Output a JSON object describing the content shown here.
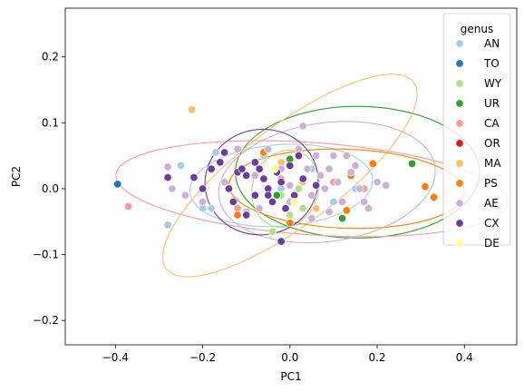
{
  "chart_data": {
    "type": "scatter",
    "xlabel": "PC1",
    "ylabel": "PC2",
    "xlim": [
      -0.515,
      0.52
    ],
    "ylim": [
      -0.237,
      0.274
    ],
    "xticks": [
      -0.4,
      -0.2,
      0.0,
      0.2,
      0.4
    ],
    "yticks": [
      -0.2,
      -0.1,
      0.0,
      0.1,
      0.2
    ],
    "xtick_labels": [
      "−0.4",
      "−0.2",
      "0.0",
      "0.2",
      "0.4"
    ],
    "ytick_labels": [
      "−0.2",
      "−0.1",
      "0.0",
      "0.1",
      "0.2"
    ],
    "grid": false,
    "legend": {
      "title": "genus",
      "placement": "top-right",
      "entries": [
        "AN",
        "TO",
        "WY",
        "UR",
        "CA",
        "OR",
        "MA",
        "PS",
        "AE",
        "CX",
        "DE"
      ]
    },
    "series": [
      {
        "name": "AN",
        "color": "#a6cee3",
        "points": [
          [
            -0.28,
            -0.055
          ],
          [
            -0.25,
            0.035
          ],
          [
            -0.2,
            -0.03
          ],
          [
            -0.18,
            -0.03
          ],
          [
            -0.17,
            0.055
          ],
          [
            -0.1,
            -0.035
          ],
          [
            -0.06,
            0.05
          ],
          [
            -0.02,
            0.0
          ],
          [
            0.05,
            0.03
          ],
          [
            0.1,
            -0.02
          ],
          [
            0.15,
            0.0
          ],
          [
            0.18,
            -0.03
          ]
        ],
        "ellipse": {
          "cx": -0.02,
          "cy": 0.005,
          "rx": 0.21,
          "ry": 0.062,
          "angle": -4
        }
      },
      {
        "name": "TO",
        "color": "#1f78b4",
        "points": [
          [
            -0.395,
            0.007
          ]
        ],
        "ellipse": null
      },
      {
        "name": "WY",
        "color": "#b2df8a",
        "points": [
          [
            -0.04,
            -0.065
          ],
          [
            -0.02,
            -0.01
          ],
          [
            0.0,
            -0.04
          ],
          [
            0.02,
            0.0
          ],
          [
            0.03,
            -0.03
          ]
        ],
        "ellipse": {
          "cx": -0.01,
          "cy": 0.0,
          "rx": 0.09,
          "ry": 0.05,
          "angle": -70
        }
      },
      {
        "name": "UR",
        "color": "#33a02c",
        "points": [
          [
            0.28,
            0.038
          ],
          [
            0.12,
            -0.045
          ],
          [
            0.0,
            0.045
          ],
          [
            -0.03,
            -0.01
          ]
        ],
        "ellipse": {
          "cx": 0.155,
          "cy": 0.025,
          "rx": 0.28,
          "ry": 0.1,
          "angle": 0
        }
      },
      {
        "name": "CA",
        "color": "#fb9a99",
        "points": [
          [
            -0.37,
            -0.027
          ],
          [
            0.17,
            0.0
          ],
          [
            -0.12,
            -0.03
          ],
          [
            -0.02,
            0.015
          ],
          [
            0.1,
            0.01
          ]
        ],
        "ellipse": {
          "cx": 0.05,
          "cy": 0.0,
          "rx": 0.45,
          "ry": 0.07,
          "angle": 4
        }
      },
      {
        "name": "OR",
        "color": "#e31a1c",
        "points": [],
        "ellipse": null
      },
      {
        "name": "MA",
        "color": "#fdbf6f",
        "points": [
          [
            -0.225,
            0.12
          ],
          [
            0.03,
            0.01
          ],
          [
            -0.02,
            0.04
          ],
          [
            0.06,
            -0.03
          ]
        ],
        "ellipse": {
          "cx": 0.0,
          "cy": 0.02,
          "rx": 0.355,
          "ry": 0.075,
          "angle": -37
        }
      },
      {
        "name": "PS",
        "color": "#ff7f00",
        "points": [
          [
            0.19,
            0.038
          ],
          [
            0.31,
            0.003
          ],
          [
            0.33,
            -0.013
          ],
          [
            -0.12,
            -0.04
          ],
          [
            0.0,
            -0.052
          ],
          [
            0.14,
            0.02
          ],
          [
            -0.06,
            0.055
          ],
          [
            0.13,
            -0.033
          ]
        ],
        "ellipse": {
          "cx": 0.13,
          "cy": 0.0,
          "rx": 0.27,
          "ry": 0.06,
          "angle": 2
        }
      },
      {
        "name": "AE",
        "color": "#cab2d6",
        "points": [
          [
            -0.28,
            0.033
          ],
          [
            -0.27,
            0.0
          ],
          [
            -0.24,
            -0.01
          ],
          [
            -0.2,
            -0.02
          ],
          [
            -0.15,
            0.01
          ],
          [
            -0.12,
            0.06
          ],
          [
            -0.08,
            0.02
          ],
          [
            -0.05,
            0.06
          ],
          [
            -0.02,
            0.03
          ],
          [
            0.0,
            -0.02
          ],
          [
            0.02,
            0.06
          ],
          [
            0.03,
            0.095
          ],
          [
            0.04,
            0.03
          ],
          [
            0.05,
            -0.01
          ],
          [
            0.06,
            0.05
          ],
          [
            0.07,
            0.02
          ],
          [
            0.08,
            0.0
          ],
          [
            0.09,
            0.03
          ],
          [
            0.1,
            0.05
          ],
          [
            0.11,
            0.01
          ],
          [
            0.12,
            -0.02
          ],
          [
            0.13,
            0.05
          ],
          [
            0.14,
            0.025
          ],
          [
            0.15,
            0.035
          ],
          [
            0.16,
            0.0
          ],
          [
            0.17,
            -0.02
          ],
          [
            0.18,
            -0.03
          ],
          [
            0.2,
            0.01
          ],
          [
            0.22,
            0.005
          ],
          [
            0.05,
            -0.045
          ],
          [
            -0.07,
            -0.03
          ],
          [
            0.0,
            0.005
          ],
          [
            0.03,
            0.015
          ],
          [
            0.09,
            -0.035
          ]
        ],
        "ellipse": {
          "cx": 0.085,
          "cy": 0.01,
          "rx": 0.25,
          "ry": 0.09,
          "angle": -8
        }
      },
      {
        "name": "CX",
        "color": "#6a3d9a",
        "points": [
          [
            -0.28,
            0.017
          ],
          [
            -0.22,
            0.017
          ],
          [
            -0.2,
            0.0
          ],
          [
            -0.18,
            0.03
          ],
          [
            -0.16,
            0.04
          ],
          [
            -0.15,
            0.055
          ],
          [
            -0.14,
            0.0
          ],
          [
            -0.12,
            0.025
          ],
          [
            -0.1,
            0.02
          ],
          [
            -0.1,
            -0.04
          ],
          [
            -0.08,
            -0.01
          ],
          [
            -0.07,
            0.03
          ],
          [
            -0.06,
            0.015
          ],
          [
            -0.05,
            0.0
          ],
          [
            -0.04,
            -0.02
          ],
          [
            -0.03,
            0.025
          ],
          [
            -0.02,
            0.01
          ],
          [
            -0.01,
            -0.03
          ],
          [
            0.0,
            0.035
          ],
          [
            0.01,
            -0.01
          ],
          [
            0.02,
            0.05
          ],
          [
            0.03,
            0.015
          ],
          [
            -0.02,
            -0.08
          ],
          [
            -0.05,
            -0.01
          ],
          [
            0.06,
            0.005
          ],
          [
            -0.11,
            0.03
          ],
          [
            -0.08,
            0.04
          ],
          [
            -0.13,
            -0.02
          ]
        ],
        "ellipse": {
          "cx": -0.065,
          "cy": 0.01,
          "rx": 0.13,
          "ry": 0.08,
          "angle": -10
        }
      },
      {
        "name": "DE",
        "color": "#ffff99",
        "points": [
          [
            -0.035,
            0.03
          ],
          [
            0.01,
            -0.02
          ]
        ],
        "ellipse": null
      }
    ]
  }
}
